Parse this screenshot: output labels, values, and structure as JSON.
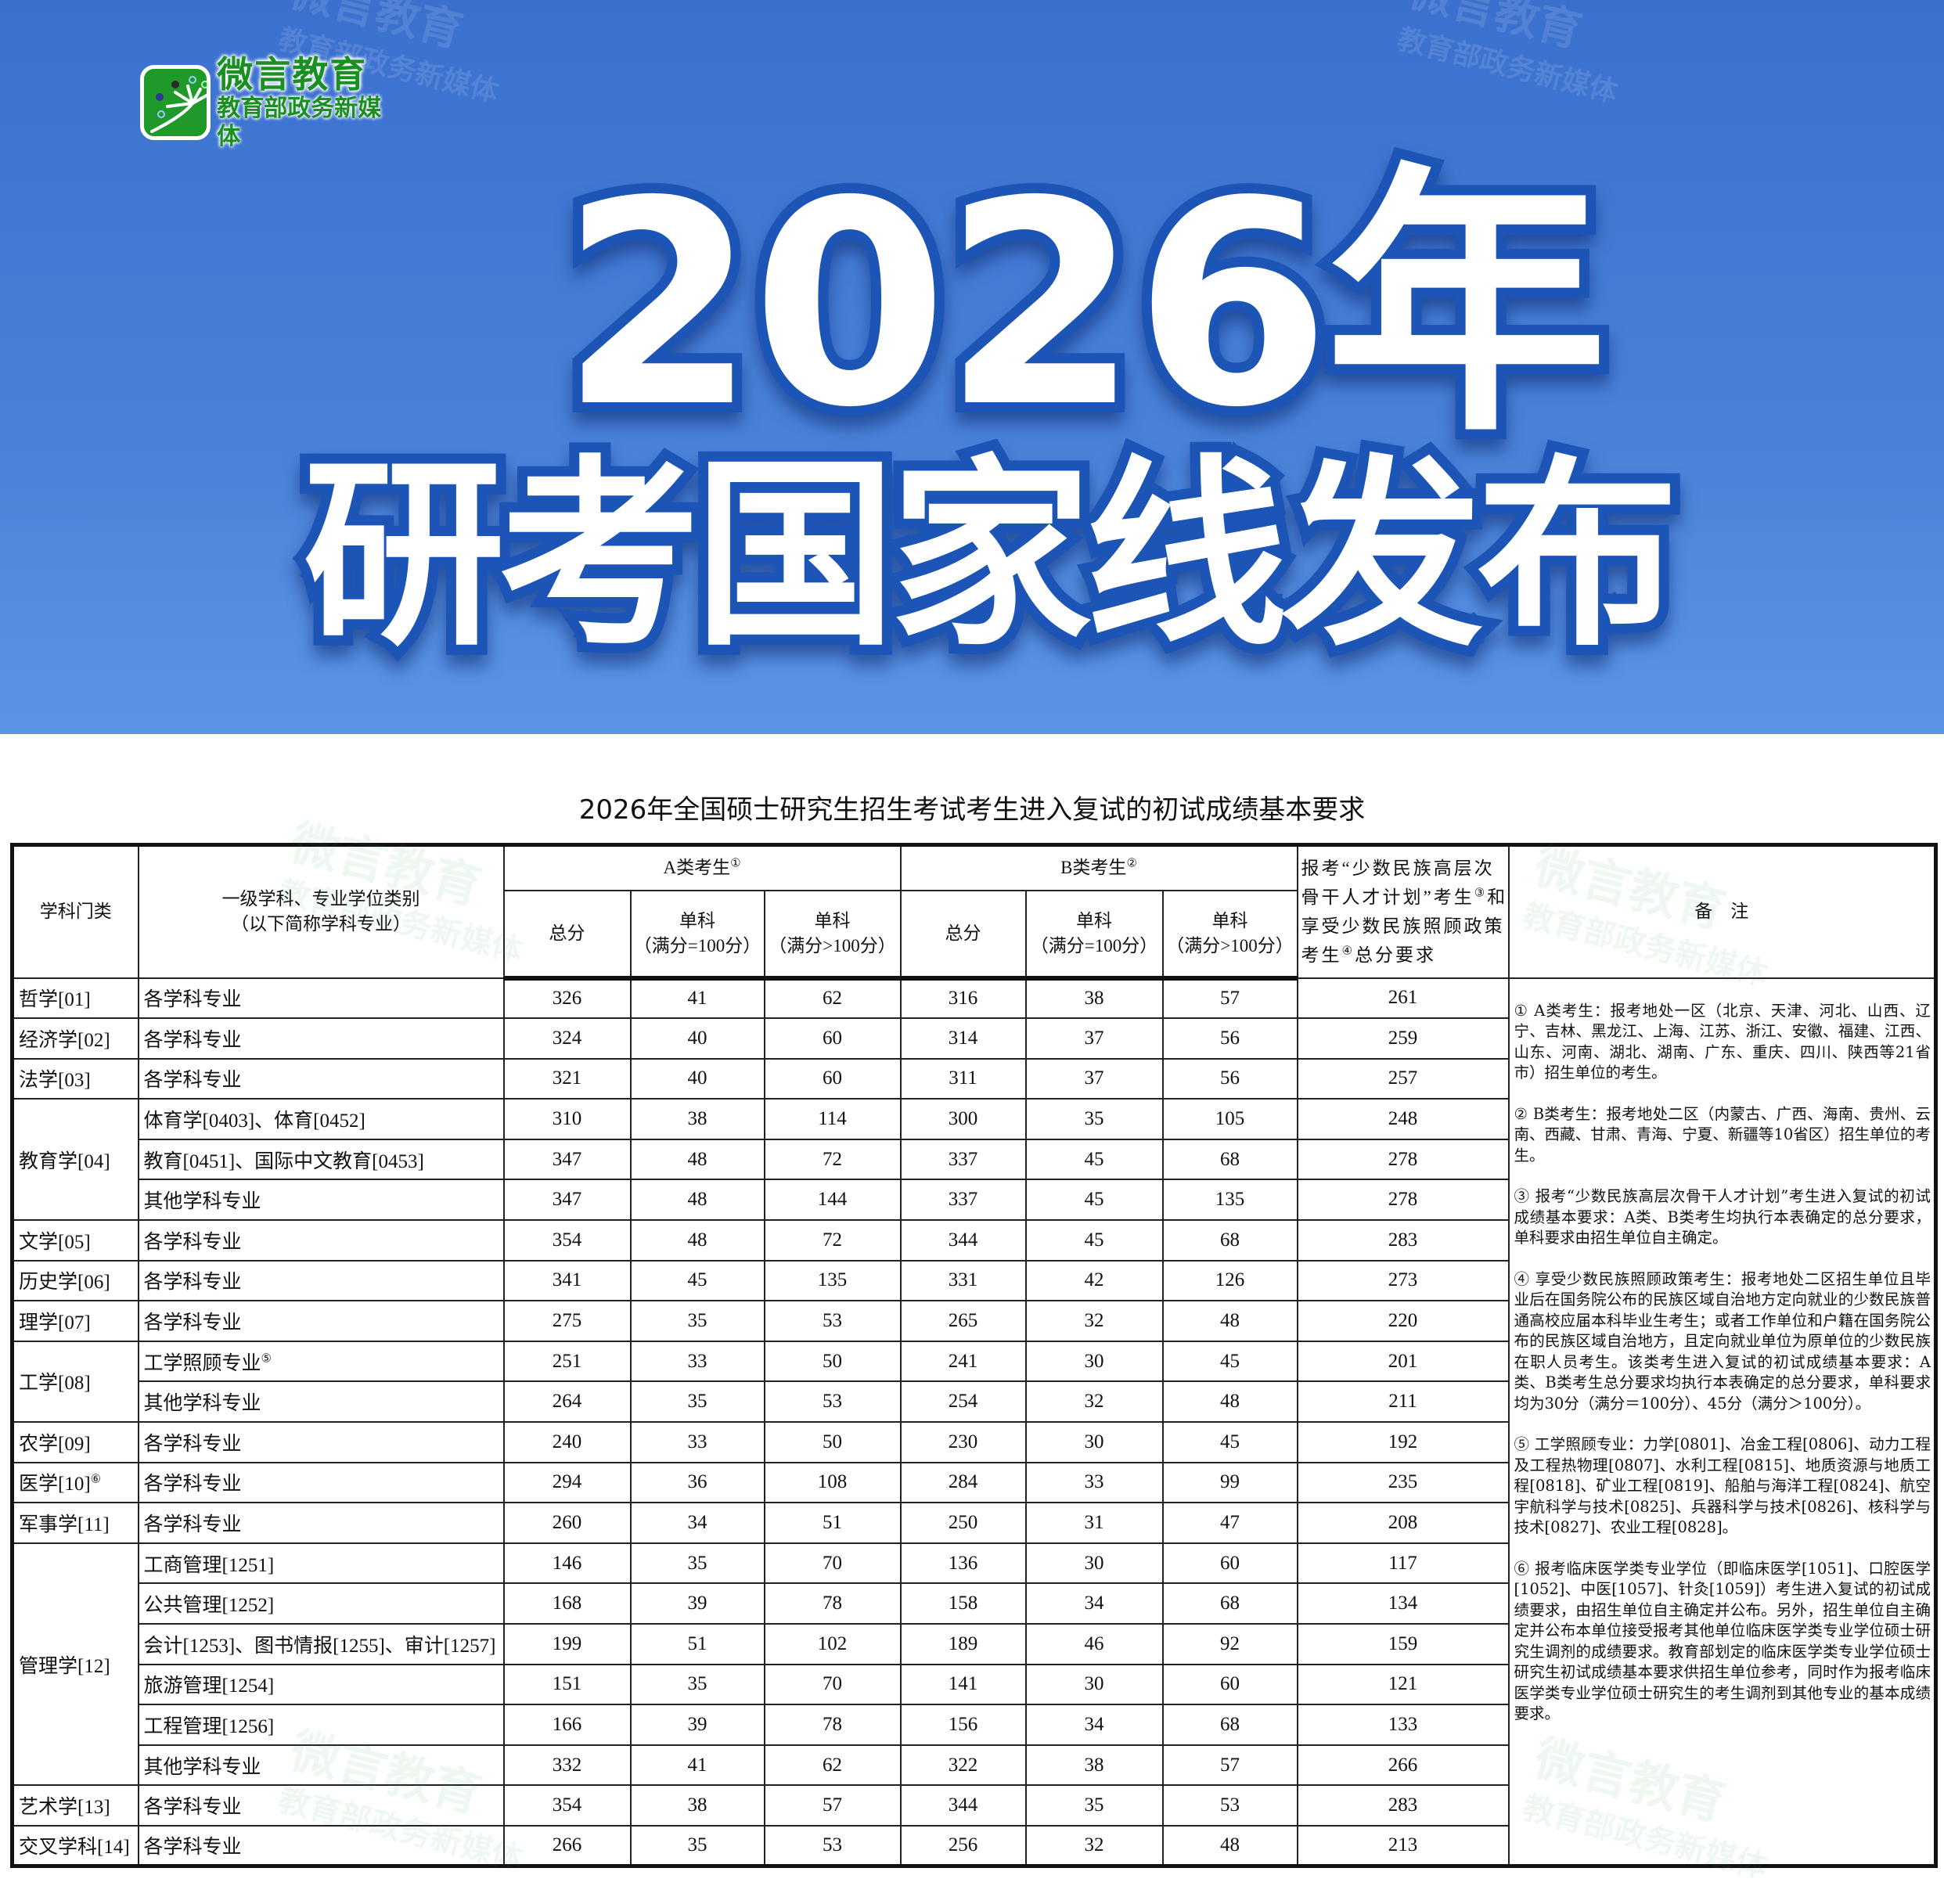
{
  "logo": {
    "name": "微言教育",
    "subtitle": "教育部政务新媒体"
  },
  "watermark": {
    "line1": "微言教育",
    "line2": "教育部政务新媒体"
  },
  "banner": {
    "line1": "2026年",
    "line2": "研考国家线发布"
  },
  "table_title": "2026年全国硕士研究生招生考试考生进入复试的初试成绩基本要求",
  "colors": {
    "banner_blue": "#3b70cf",
    "logo_green": "#1f9a2a"
  },
  "header": {
    "category": "学科门类",
    "major_line1": "一级学科、专业学位类别",
    "major_line2": "（以下简称学科专业）",
    "group_a": "A类考生",
    "group_a_sup": "①",
    "group_b": "B类考生",
    "group_b_sup": "②",
    "total": "总分",
    "single": "单科",
    "eq100": "（满分=100分）",
    "gt100": "（满分>100分）",
    "ethnic_part1": "报考“少数民族高层次骨干人才计划”考生",
    "ethnic_sup1": "③",
    "ethnic_part2": "和享受少数民族照顾政策考生",
    "ethnic_sup2": "④",
    "ethnic_part3": "总分要求",
    "remarks": "备　注"
  },
  "groups": [
    {
      "category": "哲学[01]",
      "rows": [
        {
          "major": "各学科专业",
          "values": [
            326,
            41,
            62,
            316,
            38,
            57,
            261
          ]
        }
      ]
    },
    {
      "category": "经济学[02]",
      "rows": [
        {
          "major": "各学科专业",
          "values": [
            324,
            40,
            60,
            314,
            37,
            56,
            259
          ]
        }
      ]
    },
    {
      "category": "法学[03]",
      "rows": [
        {
          "major": "各学科专业",
          "values": [
            321,
            40,
            60,
            311,
            37,
            56,
            257
          ]
        }
      ]
    },
    {
      "category": "教育学[04]",
      "rows": [
        {
          "major": "体育学[0403]、体育[0452]",
          "values": [
            310,
            38,
            114,
            300,
            35,
            105,
            248
          ]
        },
        {
          "major": "教育[0451]、国际中文教育[0453]",
          "values": [
            347,
            48,
            72,
            337,
            45,
            68,
            278
          ]
        },
        {
          "major": "其他学科专业",
          "values": [
            347,
            48,
            144,
            337,
            45,
            135,
            278
          ]
        }
      ]
    },
    {
      "category": "文学[05]",
      "rows": [
        {
          "major": "各学科专业",
          "values": [
            354,
            48,
            72,
            344,
            45,
            68,
            283
          ]
        }
      ]
    },
    {
      "category": "历史学[06]",
      "rows": [
        {
          "major": "各学科专业",
          "values": [
            341,
            45,
            135,
            331,
            42,
            126,
            273
          ]
        }
      ]
    },
    {
      "category": "理学[07]",
      "rows": [
        {
          "major": "各学科专业",
          "values": [
            275,
            35,
            53,
            265,
            32,
            48,
            220
          ]
        }
      ]
    },
    {
      "category": "工学[08]",
      "rows": [
        {
          "major": "工学照顾专业",
          "major_sup": "⑤",
          "values": [
            251,
            33,
            50,
            241,
            30,
            45,
            201
          ]
        },
        {
          "major": "其他学科专业",
          "values": [
            264,
            35,
            53,
            254,
            32,
            48,
            211
          ]
        }
      ]
    },
    {
      "category": "农学[09]",
      "rows": [
        {
          "major": "各学科专业",
          "values": [
            240,
            33,
            50,
            230,
            30,
            45,
            192
          ]
        }
      ]
    },
    {
      "category": "医学[10]",
      "category_sup": "⑥",
      "rows": [
        {
          "major": "各学科专业",
          "values": [
            294,
            36,
            108,
            284,
            33,
            99,
            235
          ]
        }
      ]
    },
    {
      "category": "军事学[11]",
      "rows": [
        {
          "major": "各学科专业",
          "values": [
            260,
            34,
            51,
            250,
            31,
            47,
            208
          ]
        }
      ]
    },
    {
      "category": "管理学[12]",
      "rows": [
        {
          "major": "工商管理[1251]",
          "values": [
            146,
            35,
            70,
            136,
            30,
            60,
            117
          ]
        },
        {
          "major": "公共管理[1252]",
          "values": [
            168,
            39,
            78,
            158,
            34,
            68,
            134
          ]
        },
        {
          "major": "会计[1253]、图书情报[1255]、审计[1257]",
          "values": [
            199,
            51,
            102,
            189,
            46,
            92,
            159
          ]
        },
        {
          "major": "旅游管理[1254]",
          "values": [
            151,
            35,
            70,
            141,
            30,
            60,
            121
          ]
        },
        {
          "major": "工程管理[1256]",
          "values": [
            166,
            39,
            78,
            156,
            34,
            68,
            133
          ]
        },
        {
          "major": "其他学科专业",
          "values": [
            332,
            41,
            62,
            322,
            38,
            57,
            266
          ]
        }
      ]
    },
    {
      "category": "艺术学[13]",
      "rows": [
        {
          "major": "各学科专业",
          "values": [
            354,
            38,
            57,
            344,
            35,
            53,
            283
          ]
        }
      ]
    },
    {
      "category": "交叉学科[14]",
      "rows": [
        {
          "major": "各学科专业",
          "values": [
            266,
            35,
            53,
            256,
            32,
            48,
            213
          ]
        }
      ]
    }
  ],
  "notes": [
    "① A类考生：报考地处一区（北京、天津、河北、山西、辽宁、吉林、黑龙江、上海、江苏、浙江、安徽、福建、江西、山东、河南、湖北、湖南、广东、重庆、四川、陕西等21省市）招生单位的考生。",
    "② B类考生：报考地处二区（内蒙古、广西、海南、贵州、云南、西藏、甘肃、青海、宁夏、新疆等10省区）招生单位的考生。",
    "③ 报考“少数民族高层次骨干人才计划”考生进入复试的初试成绩基本要求：A类、B类考生均执行本表确定的总分要求，单科要求由招生单位自主确定。",
    "④ 享受少数民族照顾政策考生：报考地处二区招生单位且毕业后在国务院公布的民族区域自治地方定向就业的少数民族普通高校应届本科毕业生考生；或者工作单位和户籍在国务院公布的民族区域自治地方，且定向就业单位为原单位的少数民族在职人员考生。该类考生进入复试的初试成绩基本要求：A类、B类考生总分要求均执行本表确定的总分要求，单科要求均为30分（满分＝100分）、45分（满分＞100分）。",
    "⑤ 工学照顾专业：力学[0801]、冶金工程[0806]、动力工程及工程热物理[0807]、水利工程[0815]、地质资源与地质工程[0818]、矿业工程[0819]、船舶与海洋工程[0824]、航空宇航科学与技术[0825]、兵器科学与技术[0826]、核科学与技术[0827]、农业工程[0828]。",
    "⑥ 报考临床医学类专业学位（即临床医学[1051]、口腔医学[1052]、中医[1057]、针灸[1059]）考生进入复试的初试成绩要求，由招生单位自主确定并公布。另外，招生单位自主确定并公布本单位接受报考其他单位临床医学类专业学位硕士研究生调剂的成绩要求。教育部划定的临床医学类专业学位硕士研究生初试成绩基本要求供招生单位参考，同时作为报考临床医学类专业学位硕士研究生的考生调剂到其他专业的基本成绩要求。"
  ]
}
